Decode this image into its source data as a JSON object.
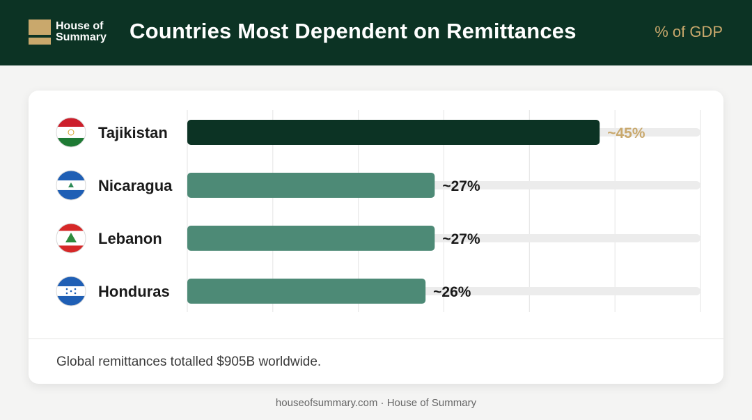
{
  "header": {
    "logo_line1": "House of",
    "logo_line2": "Summary",
    "title": "Countries Most Dependent on Remittances",
    "unit": "% of GDP"
  },
  "colors": {
    "header_bg": "#0c3324",
    "accent_gold": "#c9a86c",
    "top_bar": "#0c3324",
    "bar": "#4d8a76",
    "track": "#ececec",
    "grid": "#e3e3e3"
  },
  "chart_data": {
    "type": "bar",
    "orientation": "horizontal",
    "categories": [
      "Tajikistan",
      "Nicaragua",
      "Lebanon",
      "Honduras"
    ],
    "values": [
      45,
      27,
      27,
      26
    ],
    "value_labels": [
      "~45%",
      "~27%",
      "~27%",
      "~26%"
    ],
    "flag_icons": [
      "tajikistan-flag-icon",
      "nicaragua-flag-icon",
      "lebanon-flag-icon",
      "honduras-flag-icon"
    ],
    "xlim": [
      0,
      56
    ],
    "title": "Countries Most Dependent on Remittances",
    "xlabel": "",
    "ylabel": "",
    "grid": true,
    "legend": "none"
  },
  "note": "Global remittances totalled $905B worldwide.",
  "footer": "houseofsummary.com · House of Summary"
}
